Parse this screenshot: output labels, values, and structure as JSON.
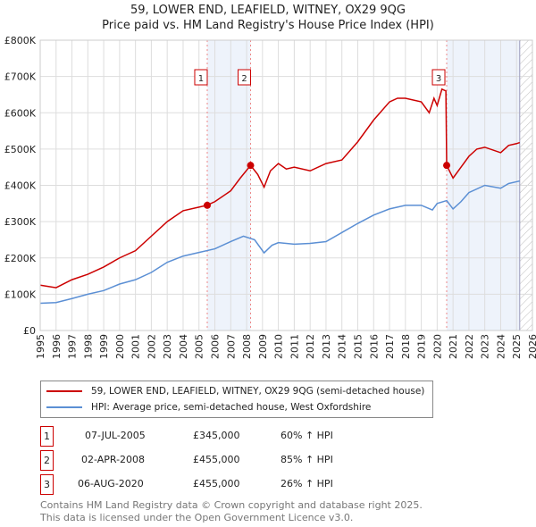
{
  "chart_data": {
    "type": "line",
    "title": "59, LOWER END, LEAFIELD, WITNEY, OX29 9QG",
    "subtitle": "Price paid vs. HM Land Registry's House Price Index (HPI)",
    "xlim": [
      1995,
      2026
    ],
    "ylim": [
      0,
      800000
    ],
    "yticks": [
      {
        "v": 0,
        "l": "£0"
      },
      {
        "v": 100000,
        "l": "£100K"
      },
      {
        "v": 200000,
        "l": "£200K"
      },
      {
        "v": 300000,
        "l": "£300K"
      },
      {
        "v": 400000,
        "l": "£400K"
      },
      {
        "v": 500000,
        "l": "£500K"
      },
      {
        "v": 600000,
        "l": "£600K"
      },
      {
        "v": 700000,
        "l": "£700K"
      },
      {
        "v": 800000,
        "l": "£800K"
      }
    ],
    "xticks": [
      "1995",
      "1996",
      "1997",
      "1998",
      "1999",
      "2000",
      "2001",
      "2002",
      "2003",
      "2004",
      "2005",
      "2006",
      "2007",
      "2008",
      "2009",
      "2010",
      "2011",
      "2012",
      "2013",
      "2014",
      "2015",
      "2016",
      "2017",
      "2018",
      "2019",
      "2020",
      "2021",
      "2022",
      "2023",
      "2024",
      "2025",
      "2026"
    ],
    "data_end": 2025.2,
    "series": [
      {
        "name": "59, LOWER END, LEAFIELD, WITNEY, OX29 9QG (semi-detached house)",
        "color": "#cc0000",
        "x": [
          1995,
          1996,
          1997,
          1998,
          1999,
          2000,
          2001,
          2002,
          2003,
          2004,
          2005,
          2005.5,
          2006,
          2007,
          2007.6,
          2008.25,
          2008.7,
          2009.1,
          2009.5,
          2010,
          2010.5,
          2011,
          2012,
          2013,
          2014,
          2015,
          2016,
          2017,
          2017.5,
          2018,
          2019,
          2019.5,
          2019.8,
          2020,
          2020.3,
          2020.55,
          2020.6,
          2021,
          2021.5,
          2022,
          2022.5,
          2023,
          2024,
          2024.5,
          2025,
          2025.2
        ],
        "y": [
          125000,
          118000,
          140000,
          155000,
          175000,
          200000,
          220000,
          260000,
          300000,
          330000,
          340000,
          345000,
          355000,
          385000,
          420000,
          455000,
          430000,
          395000,
          440000,
          460000,
          445000,
          450000,
          440000,
          460000,
          470000,
          520000,
          580000,
          630000,
          640000,
          640000,
          630000,
          600000,
          640000,
          620000,
          665000,
          660000,
          455000,
          420000,
          450000,
          480000,
          500000,
          505000,
          490000,
          510000,
          515000,
          518000
        ]
      },
      {
        "name": "HPI: Average price, semi-detached house, West Oxfordshire",
        "color": "#5b8fd4",
        "x": [
          1995,
          1996,
          1997,
          1998,
          1999,
          2000,
          2001,
          2002,
          2003,
          2004,
          2005,
          2006,
          2007,
          2007.8,
          2008.5,
          2009.1,
          2009.6,
          2010,
          2011,
          2012,
          2013,
          2014,
          2015,
          2016,
          2017,
          2018,
          2019,
          2019.7,
          2020,
          2020.6,
          2021,
          2021.5,
          2022,
          2023,
          2024,
          2024.5,
          2025,
          2025.2
        ],
        "y": [
          75000,
          77000,
          88000,
          100000,
          110000,
          128000,
          140000,
          160000,
          188000,
          205000,
          215000,
          225000,
          245000,
          260000,
          250000,
          214000,
          235000,
          242000,
          238000,
          240000,
          245000,
          270000,
          295000,
          318000,
          335000,
          345000,
          345000,
          332000,
          350000,
          358000,
          335000,
          355000,
          380000,
          400000,
          392000,
          405000,
          410000,
          412000
        ]
      }
    ],
    "sales": [
      {
        "label": "1",
        "x": 2005.52,
        "y": 345000,
        "date": "07-JUL-2005",
        "price": "£345,000",
        "hpi": "60% ↑ HPI"
      },
      {
        "label": "2",
        "x": 2008.25,
        "y": 455000,
        "date": "02-APR-2008",
        "price": "£455,000",
        "hpi": "85% ↑ HPI"
      },
      {
        "label": "3",
        "x": 2020.6,
        "y": 455000,
        "date": "06-AUG-2020",
        "price": "£455,000",
        "hpi": "26% ↑ HPI"
      }
    ]
  },
  "footer": {
    "line1": "Contains HM Land Registry data © Crown copyright and database right 2025.",
    "line2": "This data is licensed under the Open Government Licence v3.0."
  }
}
